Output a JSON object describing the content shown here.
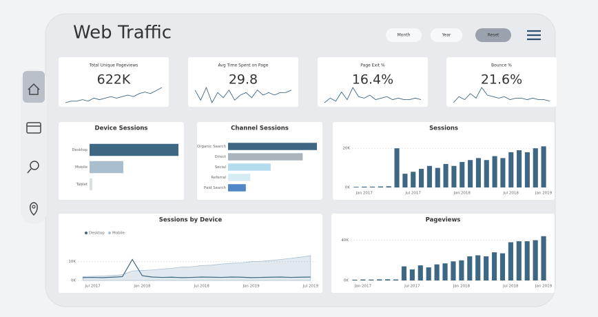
{
  "header": {
    "title": "Web Traffic",
    "buttons": [
      "Month",
      "Year",
      "Reset"
    ]
  },
  "kpis": [
    {
      "label": "Total Unique Pageviews",
      "value": "622K",
      "trend": [
        2,
        3,
        3,
        4,
        3,
        5,
        4,
        5,
        6,
        5,
        6,
        7,
        6,
        8,
        9,
        8,
        10,
        12
      ]
    },
    {
      "label": "Avg Time Spent on Page",
      "value": "29.8",
      "trend": [
        8,
        4,
        9,
        3,
        7,
        5,
        8,
        4,
        6,
        7,
        5,
        8,
        6,
        7,
        6,
        7,
        7,
        8
      ]
    },
    {
      "label": "Page Exit %",
      "value": "16.4%",
      "trend": [
        2,
        5,
        3,
        9,
        4,
        12,
        6,
        5,
        7,
        4,
        5,
        6,
        4,
        5,
        4,
        4,
        5,
        4
      ]
    },
    {
      "label": "Bounce %",
      "value": "21.6%",
      "trend": [
        2,
        6,
        4,
        8,
        5,
        12,
        7,
        6,
        5,
        6,
        4,
        5,
        5,
        4,
        5,
        4,
        4,
        3
      ]
    }
  ],
  "chart_data": [
    {
      "type": "hbar",
      "title": "Device Sessions",
      "categories": [
        "Desktop",
        "Mobile",
        "Tablet"
      ],
      "values": [
        100,
        38,
        3
      ],
      "colors": [
        "#3e6784",
        "#a9bfd0",
        "#d8e0e6"
      ],
      "xlim": [
        0,
        100
      ]
    },
    {
      "type": "hbar",
      "title": "Channel Sessions",
      "categories": [
        "Organic Search",
        "Direct",
        "Social",
        "Referral",
        "Paid Search"
      ],
      "values": [
        100,
        84,
        48,
        25,
        20
      ],
      "colors": [
        "#3e6784",
        "#a9b4bd",
        "#b5dced",
        "#d6ecf5",
        "#4f86c6"
      ],
      "xlim": [
        0,
        100
      ]
    },
    {
      "type": "bar",
      "title": "Sessions",
      "color": "#3e6784",
      "categories": [
        null,
        "Jan 2017",
        null,
        null,
        null,
        null,
        null,
        "Jul 2017",
        null,
        null,
        null,
        null,
        null,
        "Jan 2018",
        null,
        null,
        null,
        null,
        null,
        "Jul 2018",
        null,
        null,
        null,
        "Jan 2019"
      ],
      "values": [
        300,
        400,
        400,
        500,
        600,
        20000,
        7000,
        8000,
        9500,
        11000,
        10000,
        12000,
        11000,
        13000,
        14000,
        15000,
        14000,
        16000,
        15000,
        18000,
        19000,
        18000,
        20000,
        21000
      ],
      "ylim": [
        0,
        25000
      ],
      "yticks": [
        {
          "value": 0,
          "label": "0K"
        },
        {
          "value": 20000,
          "label": "20K"
        }
      ],
      "grid": true
    },
    {
      "type": "line",
      "title": "Sessions by Device",
      "categories": [
        null,
        "Jul 2017",
        null,
        null,
        null,
        null,
        "Jan 2018",
        null,
        null,
        null,
        null,
        null,
        "Jul 2018",
        null,
        null,
        null,
        null,
        "Jan 2019",
        null,
        null,
        null,
        null,
        null,
        "Jul 2019"
      ],
      "series": [
        {
          "name": "Desktop",
          "color": "#3e6784",
          "values": [
            1500,
            1600,
            1500,
            1700,
            2000,
            11000,
            2500,
            1800,
            1600,
            1700,
            1500,
            1600,
            1800,
            1700,
            1600,
            1800,
            1700,
            1500,
            1600,
            1700,
            1800,
            1600,
            1700,
            1800
          ]
        },
        {
          "name": "Mobile",
          "color": "#a9bfd0",
          "area": true,
          "values": [
            2000,
            2200,
            2400,
            2600,
            3000,
            5000,
            5200,
            5500,
            6000,
            6400,
            7000,
            7200,
            7800,
            8000,
            8600,
            9000,
            9200,
            9800,
            10000,
            10500,
            11000,
            11600,
            12200,
            13000
          ]
        }
      ],
      "ylim": [
        0,
        22000
      ],
      "yticks": [
        {
          "value": 0,
          "label": "0K"
        },
        {
          "value": 10000,
          "label": "10K"
        }
      ],
      "grid": true
    },
    {
      "type": "bar",
      "title": "Pageviews",
      "color": "#3e6784",
      "categories": [
        null,
        "Jan 2017",
        null,
        null,
        null,
        null,
        null,
        "Jul 2017",
        null,
        null,
        null,
        null,
        null,
        "Jan 2018",
        null,
        null,
        null,
        null,
        null,
        "Jul 2018",
        null,
        null,
        null,
        "Jan 2019"
      ],
      "values": [
        800,
        1000,
        900,
        1100,
        1200,
        1000,
        14000,
        11000,
        15000,
        13000,
        16000,
        17000,
        19000,
        20000,
        24000,
        25000,
        24000,
        28000,
        27000,
        38000,
        39000,
        39000,
        40000,
        44000
      ],
      "ylim": [
        0,
        50000
      ],
      "yticks": [
        {
          "value": 0,
          "label": "0K"
        },
        {
          "value": 40000,
          "label": "40K"
        }
      ],
      "grid": true
    }
  ]
}
